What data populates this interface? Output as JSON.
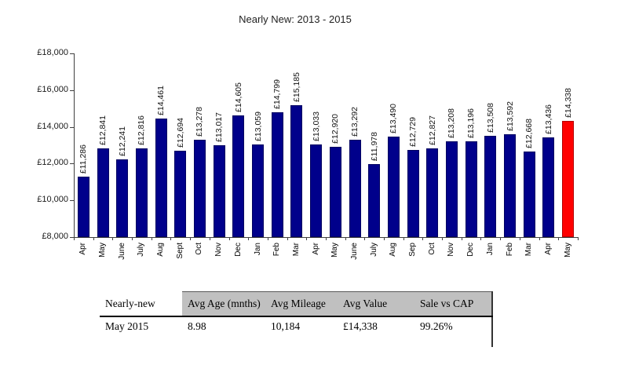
{
  "chart_data": {
    "type": "bar",
    "title": "Nearly New: 2013 - 2015",
    "categories": [
      "Apr",
      "May",
      "June",
      "July",
      "Aug",
      "Sept",
      "Oct",
      "Nov",
      "Dec",
      "Jan",
      "Feb",
      "Mar",
      "Apr",
      "May",
      "June",
      "July",
      "Aug",
      "Sep",
      "Oct",
      "Nov",
      "Dec",
      "Jan",
      "Feb",
      "Mar",
      "Apr",
      "May"
    ],
    "values": [
      11286,
      12841,
      12241,
      12816,
      14461,
      12694,
      13278,
      13017,
      14605,
      13059,
      14799,
      15185,
      13033,
      12920,
      13292,
      11978,
      13490,
      12729,
      12827,
      13208,
      13196,
      13508,
      13592,
      12668,
      13436,
      14338
    ],
    "labels": [
      "£11,286",
      "£12,841",
      "£12,241",
      "£12,816",
      "£14,461",
      "£12,694",
      "£13,278",
      "£13,017",
      "£14,605",
      "£13,059",
      "£14,799",
      "£15,185",
      "£13,033",
      "£12,920",
      "£13,292",
      "£11,978",
      "£13,490",
      "£12,729",
      "£12,827",
      "£13,208",
      "£13,196",
      "£13,508",
      "£13,592",
      "£12,668",
      "£13,436",
      "£14,338"
    ],
    "xlabel": "",
    "ylabel": "",
    "ylim": [
      8000,
      18000
    ],
    "ytick_values": [
      18000,
      16000,
      14000,
      12000,
      10000,
      8000
    ],
    "ytick_labels": [
      "£18,000",
      "£16,000",
      "£14,000",
      "£12,000",
      "£10,000",
      "£8,000"
    ],
    "grid": false,
    "legend": false,
    "bar_color": "#00008B",
    "highlight_color": "#FF0000",
    "highlight_index": 25
  },
  "table": {
    "header_bg": "#C0C0C0",
    "headers": [
      "Nearly-new",
      "Avg Age (mnths)",
      "Avg Mileage",
      "Avg Value",
      "Sale vs CAP"
    ],
    "rows": [
      [
        "May 2015",
        "8.98",
        "10,184",
        "£14,338",
        "99.26%"
      ]
    ]
  }
}
